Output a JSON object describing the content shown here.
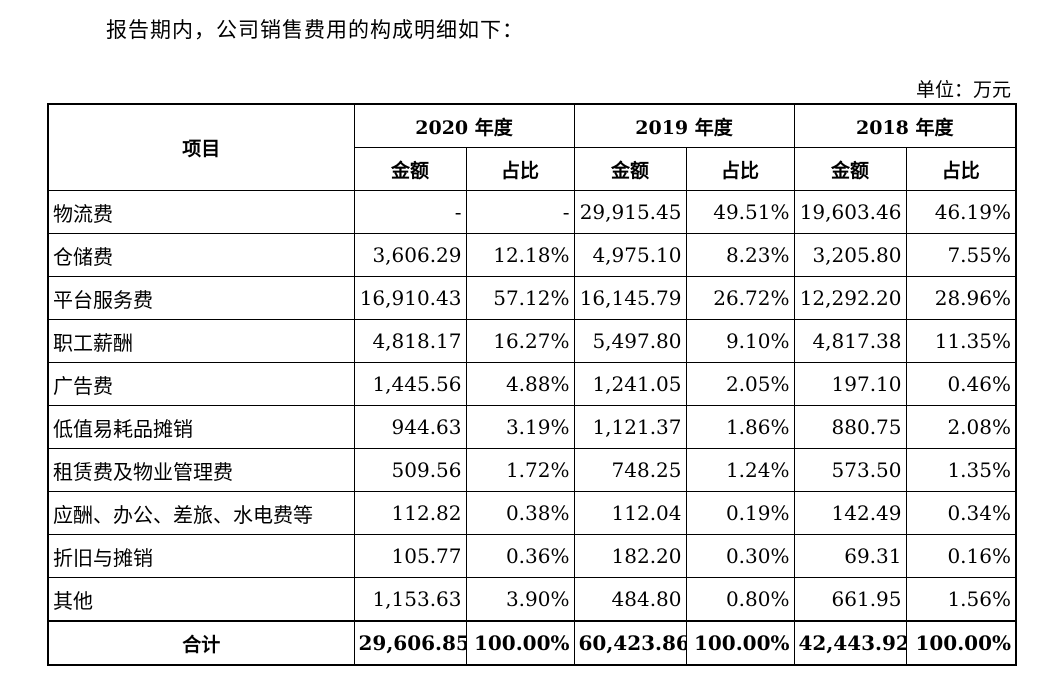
{
  "intro_text": "报告期内，公司销售费用的构成明细如下：",
  "unit_label": "单位：万元",
  "table": {
    "item_header": "项目",
    "years": [
      "2020 年度",
      "2019 年度",
      "2018 年度"
    ],
    "amount_header": "金额",
    "ratio_header": "占比",
    "rows": [
      {
        "name": "物流费",
        "cells": [
          "-",
          "-",
          "29,915.45",
          "49.51%",
          "19,603.46",
          "46.19%"
        ]
      },
      {
        "name": "仓储费",
        "cells": [
          "3,606.29",
          "12.18%",
          "4,975.10",
          "8.23%",
          "3,205.80",
          "7.55%"
        ]
      },
      {
        "name": "平台服务费",
        "cells": [
          "16,910.43",
          "57.12%",
          "16,145.79",
          "26.72%",
          "12,292.20",
          "28.96%"
        ]
      },
      {
        "name": "职工薪酬",
        "cells": [
          "4,818.17",
          "16.27%",
          "5,497.80",
          "9.10%",
          "4,817.38",
          "11.35%"
        ]
      },
      {
        "name": "广告费",
        "cells": [
          "1,445.56",
          "4.88%",
          "1,241.05",
          "2.05%",
          "197.10",
          "0.46%"
        ]
      },
      {
        "name": "低值易耗品摊销",
        "cells": [
          "944.63",
          "3.19%",
          "1,121.37",
          "1.86%",
          "880.75",
          "2.08%"
        ]
      },
      {
        "name": "租赁费及物业管理费",
        "cells": [
          "509.56",
          "1.72%",
          "748.25",
          "1.24%",
          "573.50",
          "1.35%"
        ]
      },
      {
        "name": "应酬、办公、差旅、水电费等",
        "cells": [
          "112.82",
          "0.38%",
          "112.04",
          "0.19%",
          "142.49",
          "0.34%"
        ]
      },
      {
        "name": "折旧与摊销",
        "cells": [
          "105.77",
          "0.36%",
          "182.20",
          "0.30%",
          "69.31",
          "0.16%"
        ]
      },
      {
        "name": "其他",
        "cells": [
          "1,153.63",
          "3.90%",
          "484.80",
          "0.80%",
          "661.95",
          "1.56%"
        ]
      }
    ],
    "total": {
      "name": "合计",
      "cells": [
        "29,606.85",
        "100.00%",
        "60,423.86",
        "100.00%",
        "42,443.92",
        "100.00%"
      ]
    }
  }
}
